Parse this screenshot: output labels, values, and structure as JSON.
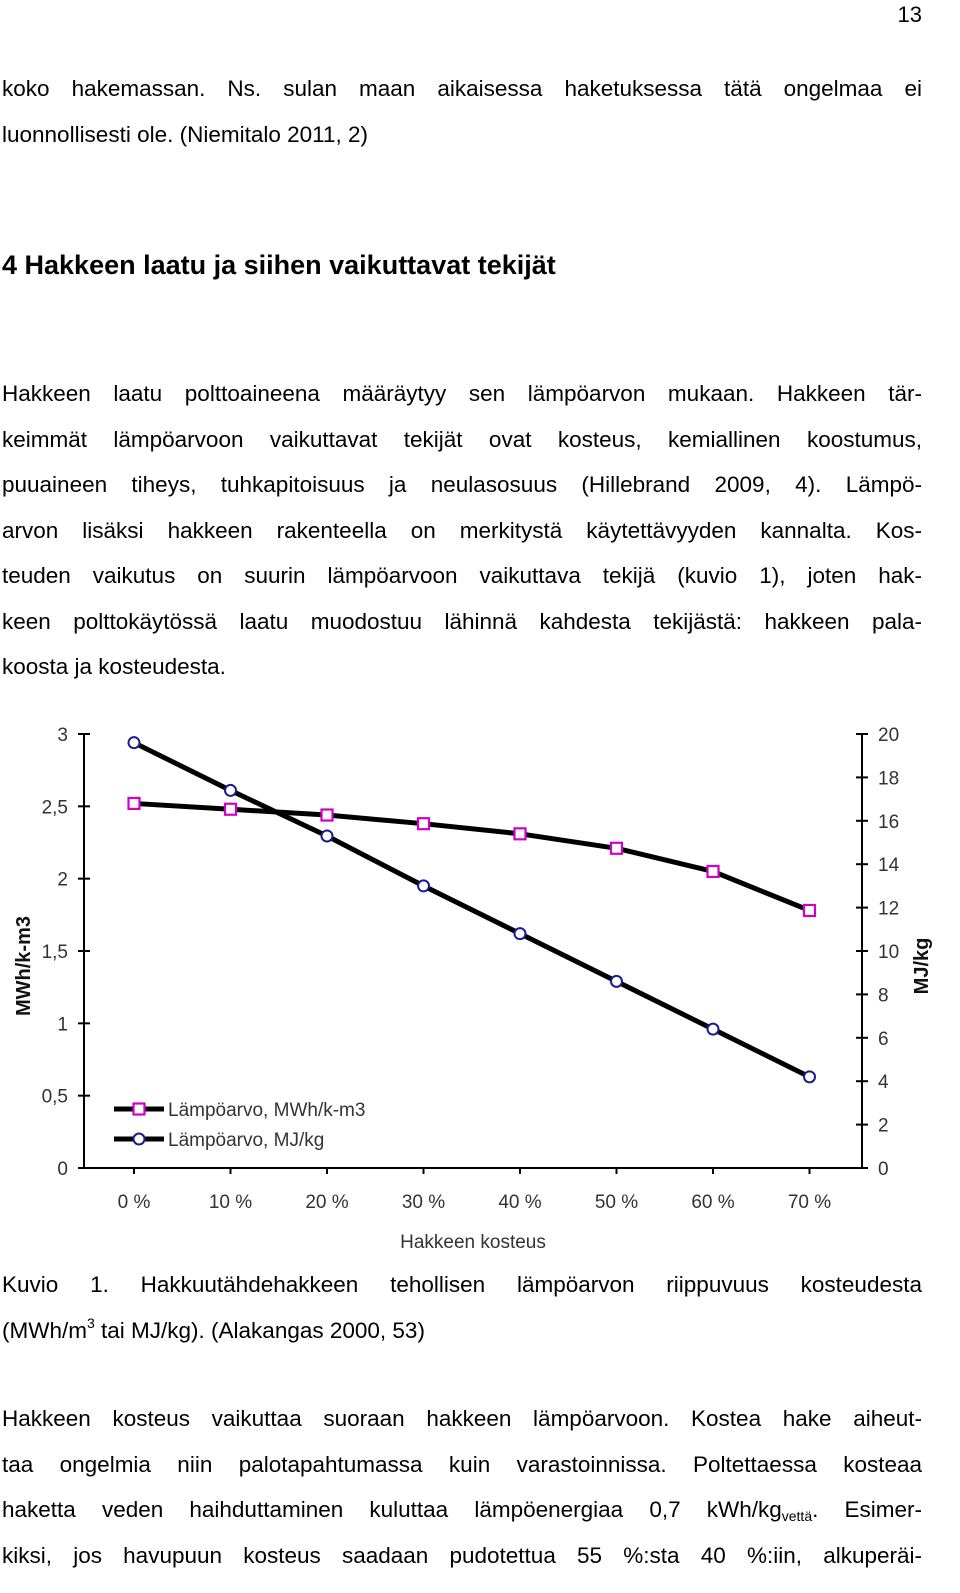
{
  "page_number": "13",
  "para1": [
    "koko hakemassan. Ns. sulan maan aikaisessa haketuksessa tätä ongelmaa ei",
    "luonnollisesti ole. (Niemitalo 2011, 2)"
  ],
  "heading": "4 Hakkeen laatu ja siihen vaikuttavat tekijät",
  "para2": [
    "Hakkeen laatu polttoaineena määräytyy sen lämpöarvon mukaan. Hakkeen tär-",
    "keimmät lämpöarvoon vaikuttavat tekijät ovat kosteus, kemiallinen koostumus,",
    "puuaineen tiheys, tuhkapitoisuus ja neulasosuus (Hillebrand 2009, 4). Lämpö-",
    "arvon lisäksi hakkeen rakenteella on merkitystä käytettävyyden kannalta. Kos-",
    "teuden vaikutus on suurin lämpöarvoon vaikuttava tekijä (kuvio 1), joten hak-",
    "keen polttokäytössä laatu muodostuu lähinnä kahdesta tekijästä: hakkeen pala-",
    "koosta ja kosteudesta."
  ],
  "caption": {
    "line1": "Kuvio 1. Hakkuutähdehakkeen tehollisen lämpöarvon riippuvuus kosteudesta",
    "line2_pre": "(MWh/m",
    "line2_sup": "3",
    "line2_post": " tai MJ/kg). (Alakangas 2000, 53)"
  },
  "para3": {
    "line1": "Hakkeen kosteus vaikuttaa suoraan hakkeen lämpöarvoon. Kostea hake aiheut-",
    "line2": "taa ongelmia niin palotapahtumassa kuin varastoinnissa. Poltettaessa kosteaa",
    "line3_pre": "haketta veden haihduttaminen kuluttaa lämpöenergiaa 0,7 kWh/kg",
    "line3_sub": "vettä",
    "line3_post": ". Esimer-",
    "line4": "kiksi, jos havupuun kosteus saadaan pudotettua 55 %:sta 40 %:iin, alkuperäi-"
  },
  "chart_data": {
    "type": "line",
    "categories": [
      "0 %",
      "10 %",
      "20 %",
      "30 %",
      "40 %",
      "50 %",
      "60 %",
      "70 %"
    ],
    "xlabel": "Hakkeen kosteus",
    "ylabel_left": "MWh/k-m3",
    "ylabel_right": "MJ/kg",
    "ylim_left": [
      0,
      3
    ],
    "ylim_right": [
      0,
      20
    ],
    "yticks_left": [
      "0",
      "0,5",
      "1",
      "1,5",
      "2",
      "2,5",
      "3"
    ],
    "yticks_right": [
      "0",
      "2",
      "4",
      "6",
      "8",
      "10",
      "12",
      "14",
      "16",
      "18",
      "20"
    ],
    "grid": false,
    "legend_position": "bottom-left",
    "series": [
      {
        "name": "Lämpöarvo, MWh/k-m3",
        "axis": "left",
        "marker": "square",
        "marker_color": "#d000c8",
        "values": [
          2.52,
          2.48,
          2.44,
          2.38,
          2.31,
          2.21,
          2.05,
          1.78
        ]
      },
      {
        "name": "Lämpöarvo, MJ/kg",
        "axis": "right",
        "marker": "circle",
        "marker_color": "#1c1c8c",
        "values": [
          19.6,
          17.4,
          15.3,
          13.0,
          10.8,
          8.6,
          6.4,
          4.2
        ]
      }
    ]
  }
}
